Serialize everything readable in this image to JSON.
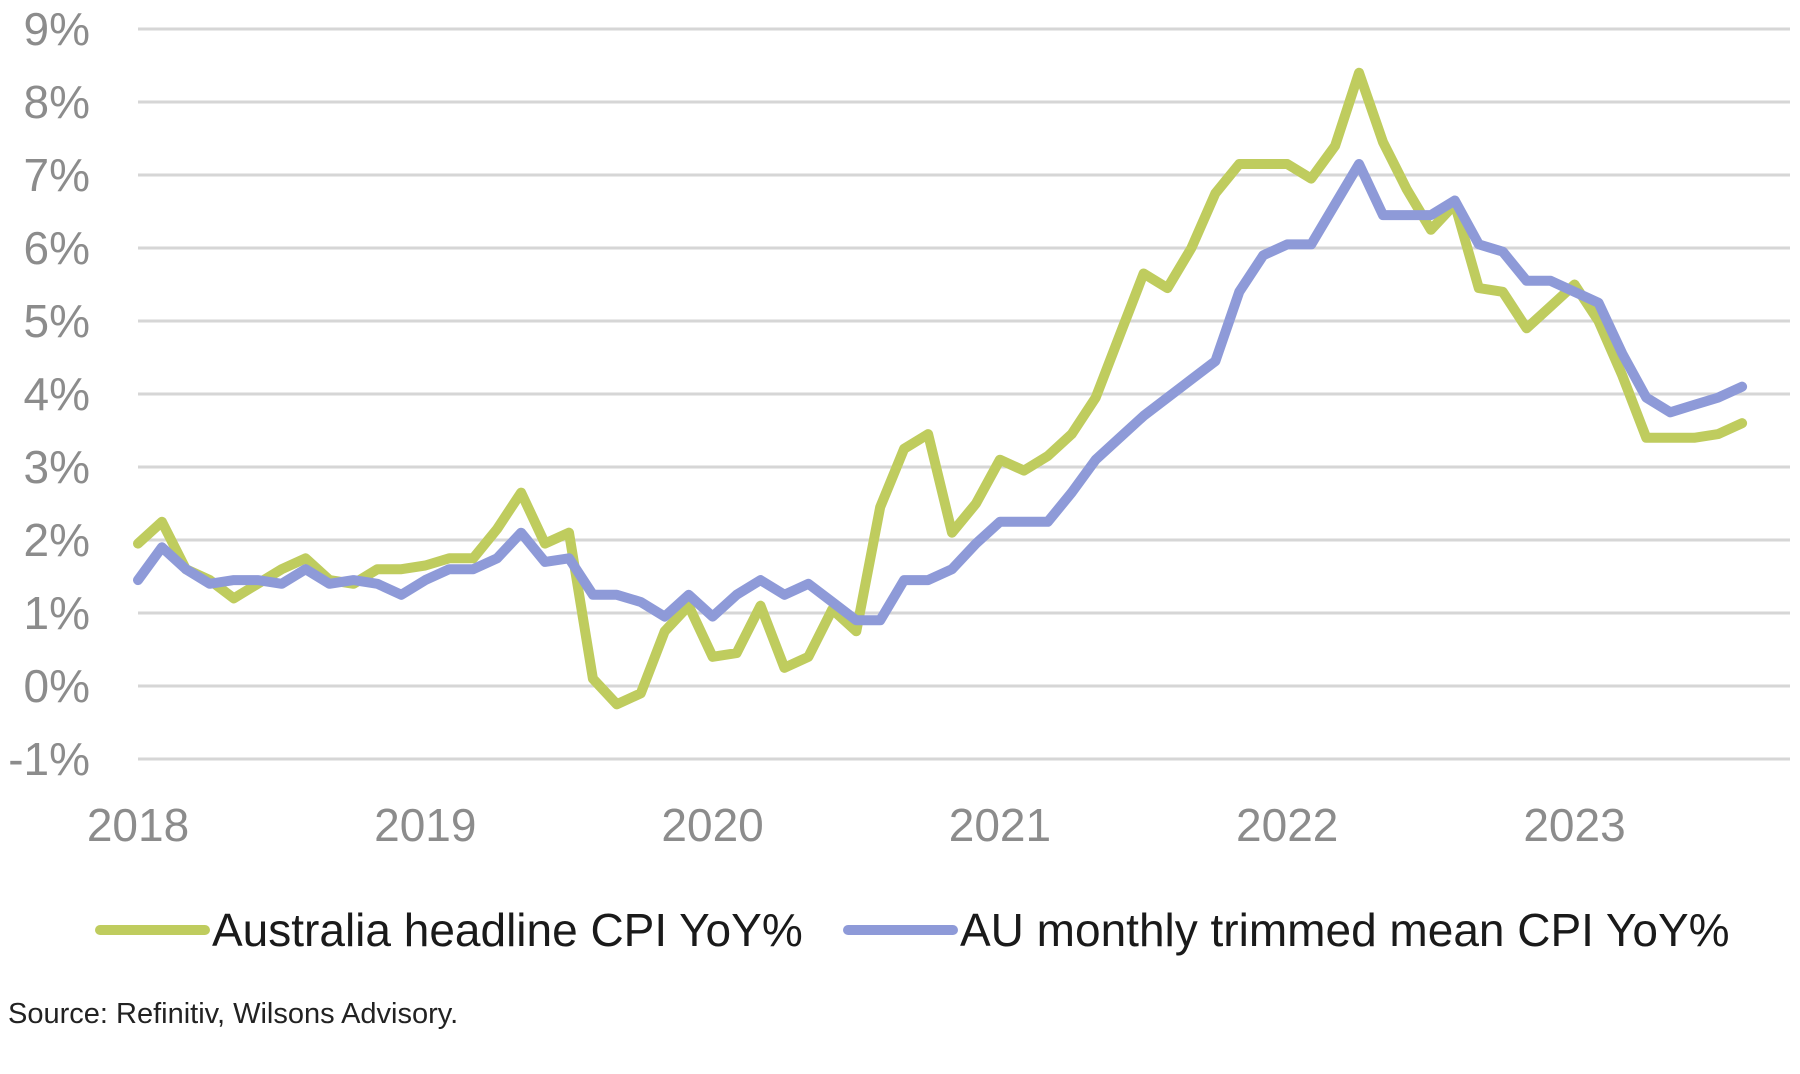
{
  "chart_data": {
    "type": "line",
    "title": "",
    "xlabel": "",
    "ylabel": "",
    "ylim": [
      -1,
      9
    ],
    "y_ticks": [
      {
        "value": 9,
        "label": "9%"
      },
      {
        "value": 8,
        "label": "8%"
      },
      {
        "value": 7,
        "label": "7%"
      },
      {
        "value": 6,
        "label": "6%"
      },
      {
        "value": 5,
        "label": "5%"
      },
      {
        "value": 4,
        "label": "4%"
      },
      {
        "value": 3,
        "label": "3%"
      },
      {
        "value": 2,
        "label": "2%"
      },
      {
        "value": 1,
        "label": "1%"
      },
      {
        "value": 0,
        "label": "0%"
      },
      {
        "value": -1,
        "label": "-1%"
      }
    ],
    "x_range": [
      0,
      69
    ],
    "x_ticks": [
      {
        "value": 0,
        "label": "2018"
      },
      {
        "value": 12,
        "label": "2019"
      },
      {
        "value": 24,
        "label": "2020"
      },
      {
        "value": 36,
        "label": "2021"
      },
      {
        "value": 48,
        "label": "2022"
      },
      {
        "value": 60,
        "label": "2023"
      }
    ],
    "grid": true,
    "legend_position": "bottom",
    "x": [
      0,
      1,
      2,
      3,
      4,
      5,
      6,
      7,
      8,
      9,
      10,
      11,
      12,
      13,
      14,
      15,
      16,
      17,
      18,
      19,
      20,
      21,
      22,
      23,
      24,
      25,
      26,
      27,
      28,
      29,
      30,
      31,
      32,
      33,
      34,
      35,
      36,
      37,
      38,
      39,
      40,
      41,
      42,
      43,
      44,
      45,
      46,
      47,
      48,
      49,
      50,
      51,
      52,
      53,
      54,
      55,
      56,
      57,
      58,
      59,
      60,
      61,
      62,
      63,
      64,
      65,
      66,
      67
    ],
    "series": [
      {
        "name": "Australia headline CPI YoY%",
        "color": "#bfcc5e",
        "values": [
          1.95,
          2.25,
          1.6,
          1.45,
          1.2,
          1.4,
          1.6,
          1.75,
          1.45,
          1.4,
          1.6,
          1.6,
          1.65,
          1.75,
          1.75,
          2.15,
          2.65,
          1.95,
          2.1,
          0.1,
          -0.25,
          -0.1,
          0.75,
          1.1,
          0.4,
          0.45,
          1.1,
          0.25,
          0.4,
          1.05,
          0.75,
          2.45,
          3.25,
          3.45,
          2.1,
          2.5,
          3.1,
          2.95,
          3.15,
          3.45,
          3.95,
          4.8,
          5.65,
          5.45,
          6.0,
          6.75,
          7.15,
          7.15,
          7.15,
          6.95,
          7.4,
          8.4,
          7.45,
          6.8,
          6.25,
          6.6,
          5.45,
          5.4,
          4.9,
          5.2,
          5.5,
          5.0,
          4.25,
          3.4,
          3.4,
          3.4,
          3.45,
          3.6
        ]
      },
      {
        "name": "AU monthly trimmed mean CPI YoY%",
        "color": "#8e9ad8",
        "values": [
          1.45,
          1.9,
          1.6,
          1.4,
          1.45,
          1.45,
          1.4,
          1.6,
          1.4,
          1.45,
          1.4,
          1.25,
          1.45,
          1.6,
          1.6,
          1.75,
          2.1,
          1.7,
          1.75,
          1.25,
          1.25,
          1.15,
          0.95,
          1.25,
          0.95,
          1.25,
          1.45,
          1.25,
          1.4,
          1.15,
          0.9,
          0.9,
          1.45,
          1.45,
          1.6,
          1.95,
          2.25,
          2.25,
          2.25,
          2.65,
          3.1,
          3.4,
          3.7,
          3.95,
          4.2,
          4.45,
          5.4,
          5.9,
          6.05,
          6.05,
          6.6,
          7.15,
          6.45,
          6.45,
          6.45,
          6.65,
          6.05,
          5.95,
          5.55,
          5.55,
          5.4,
          5.25,
          4.55,
          3.95,
          3.75,
          3.85,
          3.95,
          4.1
        ]
      }
    ]
  },
  "legend": {
    "items": [
      {
        "label": "Australia headline CPI YoY%",
        "color": "#bfcc5e"
      },
      {
        "label": "AU monthly trimmed mean CPI YoY%",
        "color": "#8e9ad8"
      }
    ]
  },
  "footer": {
    "source": "Source: Refinitiv, Wilsons Advisory."
  }
}
